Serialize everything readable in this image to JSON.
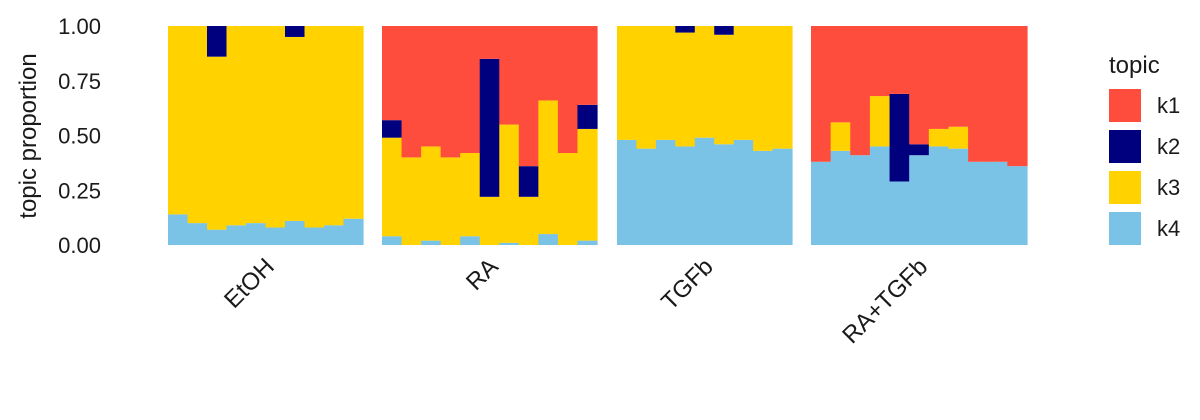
{
  "chart_data": {
    "type": "bar",
    "stacked": true,
    "ylabel": "topic proportion",
    "ylim": [
      0,
      1
    ],
    "yticks": [
      "0.00",
      "0.25",
      "0.50",
      "0.75",
      "1.00"
    ],
    "legend": {
      "title": "topic",
      "placement": "right",
      "entries": [
        {
          "label": "k1",
          "color": "#FF4D3D"
        },
        {
          "label": "k2",
          "color": "#00007F"
        },
        {
          "label": "k3",
          "color": "#FFD200"
        },
        {
          "label": "k4",
          "color": "#7BC3E6"
        }
      ]
    },
    "stack_order_bottom_to_top": [
      "k4",
      "k3",
      "k2",
      "k1"
    ],
    "panels": [
      {
        "label": "EtOH",
        "samples": [
          {
            "k4": 0.14,
            "k3": 0.86,
            "k2": 0.0,
            "k1": 0.0
          },
          {
            "k4": 0.1,
            "k3": 0.9,
            "k2": 0.0,
            "k1": 0.0
          },
          {
            "k4": 0.07,
            "k3": 0.79,
            "k2": 0.14,
            "k1": 0.0
          },
          {
            "k4": 0.09,
            "k3": 0.91,
            "k2": 0.0,
            "k1": 0.0
          },
          {
            "k4": 0.1,
            "k3": 0.9,
            "k2": 0.0,
            "k1": 0.0
          },
          {
            "k4": 0.08,
            "k3": 0.92,
            "k2": 0.0,
            "k1": 0.0
          },
          {
            "k4": 0.11,
            "k3": 0.84,
            "k2": 0.05,
            "k1": 0.0
          },
          {
            "k4": 0.08,
            "k3": 0.92,
            "k2": 0.0,
            "k1": 0.0
          },
          {
            "k4": 0.09,
            "k3": 0.91,
            "k2": 0.0,
            "k1": 0.0
          },
          {
            "k4": 0.12,
            "k3": 0.88,
            "k2": 0.0,
            "k1": 0.0
          }
        ]
      },
      {
        "label": "RA",
        "samples": [
          {
            "k4": 0.04,
            "k3": 0.45,
            "k2": 0.08,
            "k1": 0.43
          },
          {
            "k4": 0.0,
            "k3": 0.4,
            "k2": 0.0,
            "k1": 0.6
          },
          {
            "k4": 0.02,
            "k3": 0.43,
            "k2": 0.0,
            "k1": 0.55
          },
          {
            "k4": 0.0,
            "k3": 0.4,
            "k2": 0.0,
            "k1": 0.6
          },
          {
            "k4": 0.04,
            "k3": 0.38,
            "k2": 0.0,
            "k1": 0.58
          },
          {
            "k4": 0.0,
            "k3": 0.22,
            "k2": 0.63,
            "k1": 0.15
          },
          {
            "k4": 0.01,
            "k3": 0.54,
            "k2": 0.0,
            "k1": 0.45
          },
          {
            "k4": 0.0,
            "k3": 0.22,
            "k2": 0.14,
            "k1": 0.64
          },
          {
            "k4": 0.05,
            "k3": 0.61,
            "k2": 0.0,
            "k1": 0.34
          },
          {
            "k4": 0.0,
            "k3": 0.42,
            "k2": 0.0,
            "k1": 0.58
          },
          {
            "k4": 0.02,
            "k3": 0.51,
            "k2": 0.11,
            "k1": 0.36
          }
        ]
      },
      {
        "label": "TGFb",
        "samples": [
          {
            "k4": 0.48,
            "k3": 0.52,
            "k2": 0.0,
            "k1": 0.0
          },
          {
            "k4": 0.44,
            "k3": 0.56,
            "k2": 0.0,
            "k1": 0.0
          },
          {
            "k4": 0.48,
            "k3": 0.52,
            "k2": 0.0,
            "k1": 0.0
          },
          {
            "k4": 0.45,
            "k3": 0.52,
            "k2": 0.03,
            "k1": 0.0
          },
          {
            "k4": 0.49,
            "k3": 0.51,
            "k2": 0.0,
            "k1": 0.0
          },
          {
            "k4": 0.46,
            "k3": 0.5,
            "k2": 0.04,
            "k1": 0.0
          },
          {
            "k4": 0.48,
            "k3": 0.52,
            "k2": 0.0,
            "k1": 0.0
          },
          {
            "k4": 0.43,
            "k3": 0.57,
            "k2": 0.0,
            "k1": 0.0
          },
          {
            "k4": 0.44,
            "k3": 0.56,
            "k2": 0.0,
            "k1": 0.0
          }
        ]
      },
      {
        "label": "RA+TGFb",
        "samples": [
          {
            "k4": 0.38,
            "k3": 0.0,
            "k2": 0.0,
            "k1": 0.62
          },
          {
            "k4": 0.43,
            "k3": 0.13,
            "k2": 0.0,
            "k1": 0.44
          },
          {
            "k4": 0.41,
            "k3": 0.0,
            "k2": 0.0,
            "k1": 0.59
          },
          {
            "k4": 0.45,
            "k3": 0.23,
            "k2": 0.0,
            "k1": 0.32
          },
          {
            "k4": 0.29,
            "k3": 0.0,
            "k2": 0.4,
            "k1": 0.31
          },
          {
            "k4": 0.41,
            "k3": 0.0,
            "k2": 0.05,
            "k1": 0.54
          },
          {
            "k4": 0.45,
            "k3": 0.08,
            "k2": 0.0,
            "k1": 0.47
          },
          {
            "k4": 0.44,
            "k3": 0.1,
            "k2": 0.0,
            "k1": 0.46
          },
          {
            "k4": 0.38,
            "k3": 0.0,
            "k2": 0.0,
            "k1": 0.62
          },
          {
            "k4": 0.38,
            "k3": 0.0,
            "k2": 0.0,
            "k1": 0.62
          },
          {
            "k4": 0.36,
            "k3": 0.0,
            "k2": 0.0,
            "k1": 0.64
          }
        ]
      }
    ]
  }
}
